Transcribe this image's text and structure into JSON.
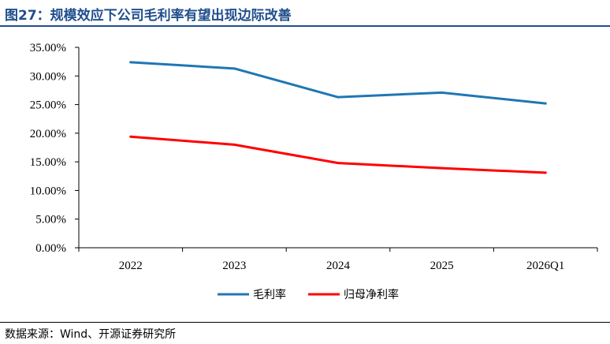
{
  "title": "图27：规模效应下公司毛利率有望出现边际改善",
  "source": "数据来源：Wind、开源证券研究所",
  "chart_data": {
    "type": "line",
    "categories": [
      "2022",
      "2023",
      "2024",
      "2025",
      "2026Q1"
    ],
    "series": [
      {
        "name": "毛利率",
        "color": "#1f77b4",
        "values": [
          32.4,
          31.3,
          26.3,
          27.1,
          25.2
        ]
      },
      {
        "name": "归母净利率",
        "color": "#ff0000",
        "values": [
          19.4,
          18.0,
          14.8,
          13.9,
          13.1
        ]
      }
    ],
    "yticks": [
      "0.00%",
      "5.00%",
      "10.00%",
      "15.00%",
      "20.00%",
      "25.00%",
      "30.00%",
      "35.00%"
    ],
    "ylim": [
      0,
      35
    ],
    "grid": false,
    "legend_position": "bottom"
  }
}
